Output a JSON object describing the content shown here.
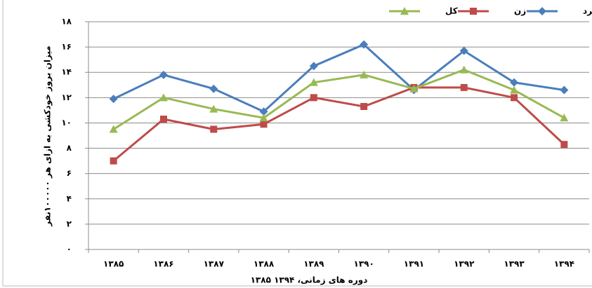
{
  "chart_data": {
    "type": "line",
    "x_label": "دوره های زمانی، ۱۳۹۴ ۱۳۸۵",
    "y_label": "میزان بروز خودکشی به ازای هر ۱۰۰۰۰۰نفر",
    "categories": [
      "۱۳۸۵",
      "۱۳۸۶",
      "۱۳۸۷",
      "۱۳۸۸",
      "۱۳۸۹",
      "۱۳۹۰",
      "۱۳۹۱",
      "۱۳۹۲",
      "۱۳۹۳",
      "۱۳۹۴"
    ],
    "series": [
      {
        "name": "مرد",
        "color": "#4a7ebb",
        "marker": "diamond",
        "values": [
          11.9,
          13.8,
          12.7,
          10.9,
          14.5,
          16.2,
          12.6,
          15.7,
          13.2,
          12.6
        ]
      },
      {
        "name": "زن",
        "color": "#be4b48",
        "marker": "square",
        "values": [
          7.0,
          10.3,
          9.5,
          9.9,
          12.0,
          11.3,
          12.8,
          12.8,
          12.0,
          8.3
        ]
      },
      {
        "name": "کل",
        "color": "#98b954",
        "marker": "triangle",
        "values": [
          9.5,
          12.0,
          11.1,
          10.4,
          13.2,
          13.8,
          12.7,
          14.2,
          12.6,
          10.4
        ]
      }
    ],
    "ylim": [
      0,
      18
    ],
    "yticks": [
      {
        "value": 0,
        "label": "۰"
      },
      {
        "value": 2,
        "label": "۲"
      },
      {
        "value": 4,
        "label": "۴"
      },
      {
        "value": 6,
        "label": "۶"
      },
      {
        "value": 8,
        "label": "۸"
      },
      {
        "value": 10,
        "label": "۱۰"
      },
      {
        "value": 12,
        "label": "۱۲"
      },
      {
        "value": 14,
        "label": "۱۴"
      },
      {
        "value": 16,
        "label": "۱۶"
      },
      {
        "value": 18,
        "label": "۱۸"
      }
    ],
    "grid": true,
    "legend": "top"
  }
}
